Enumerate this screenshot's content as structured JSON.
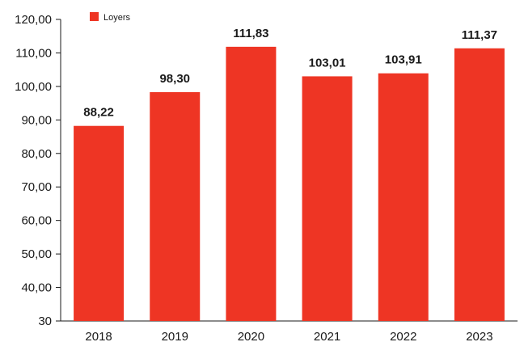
{
  "chart_data": {
    "type": "bar",
    "categories": [
      "2018",
      "2019",
      "2020",
      "2021",
      "2022",
      "2023"
    ],
    "series": [
      {
        "name": "Loyers",
        "values": [
          88.22,
          98.3,
          111.83,
          103.01,
          103.91,
          111.37
        ],
        "labels": [
          "88,22",
          "98,30",
          "111,83",
          "103,01",
          "103,91",
          "111,37"
        ]
      }
    ],
    "ylim": [
      30,
      120
    ],
    "yticks": [
      30,
      40,
      50,
      60,
      70,
      80,
      90,
      100,
      110,
      120
    ],
    "ytick_labels": [
      "30",
      "40,00",
      "50,00",
      "60,00",
      "70,00",
      "80,00",
      "90,00",
      "100,00",
      "110,00",
      "120,00"
    ],
    "grid": false,
    "legend": "top-left",
    "colors": {
      "bar": "#ee3524",
      "axis": "#1a1a1a"
    }
  }
}
